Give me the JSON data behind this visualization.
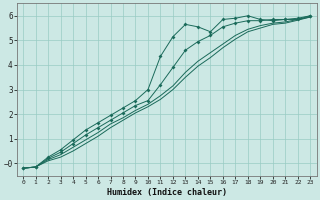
{
  "xlabel": "Humidex (Indice chaleur)",
  "bg_color": "#cce8e4",
  "grid_color": "#99ccc4",
  "line_color": "#1a6a5a",
  "xlim": [
    -0.5,
    23.5
  ],
  "ylim": [
    -0.5,
    6.5
  ],
  "xticks": [
    0,
    1,
    2,
    3,
    4,
    5,
    6,
    7,
    8,
    9,
    10,
    11,
    12,
    13,
    14,
    15,
    16,
    17,
    18,
    19,
    20,
    21,
    22,
    23
  ],
  "yticks": [
    0,
    1,
    2,
    3,
    4,
    5,
    6
  ],
  "ytick_labels": [
    "−0",
    "1",
    "2",
    "3",
    "4",
    "5",
    "6"
  ],
  "line1_x": [
    0,
    1,
    2,
    3,
    4,
    5,
    6,
    7,
    8,
    9,
    10,
    11,
    12,
    13,
    14,
    15,
    16,
    17,
    18,
    19,
    20,
    21,
    22,
    23
  ],
  "line1_y": [
    -0.2,
    -0.15,
    0.25,
    0.55,
    0.95,
    1.35,
    1.65,
    1.95,
    2.25,
    2.55,
    3.0,
    4.35,
    5.15,
    5.65,
    5.55,
    5.35,
    5.85,
    5.9,
    6.0,
    5.85,
    5.8,
    5.85,
    5.85,
    6.0
  ],
  "line2_x": [
    0,
    1,
    2,
    3,
    4,
    5,
    6,
    7,
    8,
    9,
    10,
    11,
    12,
    13,
    14,
    15,
    16,
    17,
    18,
    19,
    20,
    21,
    22,
    23
  ],
  "line2_y": [
    -0.2,
    -0.15,
    0.2,
    0.45,
    0.8,
    1.15,
    1.45,
    1.75,
    2.05,
    2.35,
    2.55,
    3.2,
    3.9,
    4.6,
    4.95,
    5.2,
    5.55,
    5.7,
    5.8,
    5.8,
    5.85,
    5.85,
    5.9,
    6.0
  ],
  "line3_x": [
    0,
    1,
    2,
    3,
    4,
    5,
    6,
    7,
    8,
    9,
    10,
    11,
    12,
    13,
    14,
    15,
    16,
    17,
    18,
    19,
    20,
    21,
    22,
    23
  ],
  "line3_y": [
    -0.2,
    -0.15,
    0.15,
    0.35,
    0.65,
    0.95,
    1.25,
    1.6,
    1.85,
    2.15,
    2.4,
    2.75,
    3.15,
    3.7,
    4.15,
    4.5,
    4.85,
    5.2,
    5.45,
    5.6,
    5.7,
    5.75,
    5.85,
    5.95
  ],
  "line4_x": [
    0,
    1,
    2,
    3,
    4,
    5,
    6,
    7,
    8,
    9,
    10,
    11,
    12,
    13,
    14,
    15,
    16,
    17,
    18,
    19,
    20,
    21,
    22,
    23
  ],
  "line4_y": [
    -0.2,
    -0.15,
    0.1,
    0.25,
    0.5,
    0.8,
    1.1,
    1.45,
    1.75,
    2.05,
    2.3,
    2.6,
    3.0,
    3.5,
    3.95,
    4.3,
    4.7,
    5.05,
    5.35,
    5.5,
    5.65,
    5.7,
    5.82,
    5.95
  ]
}
